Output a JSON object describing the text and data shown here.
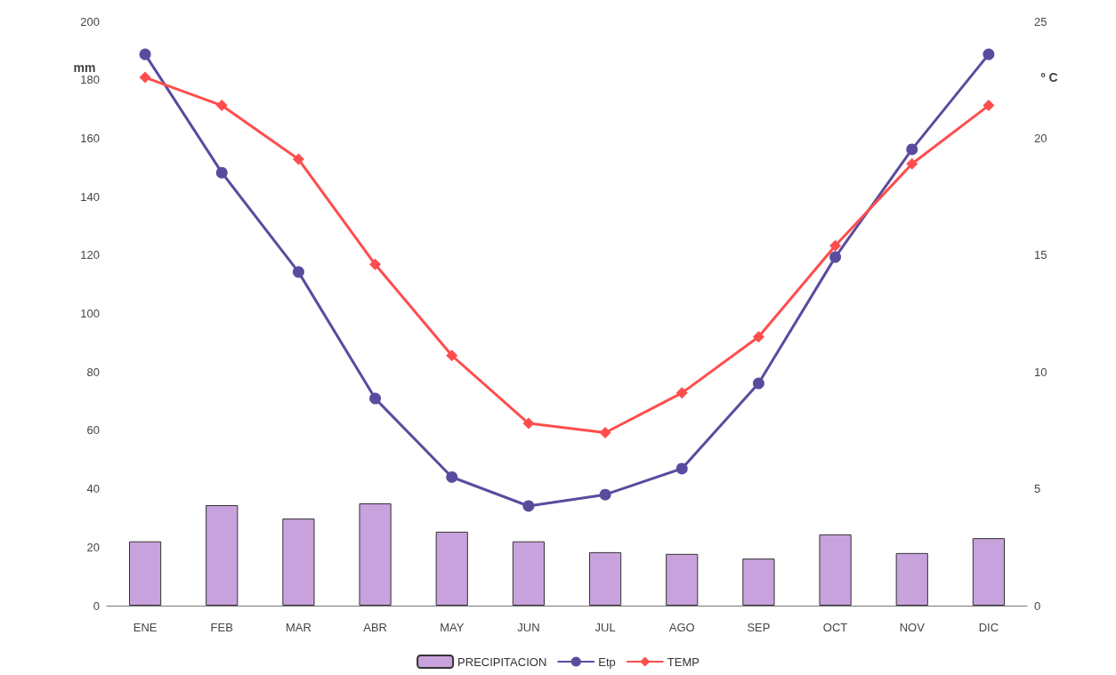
{
  "chart_data": {
    "type": "bar",
    "ylabel": "mm",
    "y2label": "º C",
    "categories": [
      "ENE",
      "FEB",
      "MAR",
      "ABR",
      "MAY",
      "JUN",
      "JUL",
      "AGO",
      "SEP",
      "OCT",
      "NOV",
      "DIC"
    ],
    "series": [
      {
        "name": "PRECIPITACION",
        "color": "#c8a2dc",
        "values": [
          22,
          34.4,
          29.8,
          35,
          25.3,
          22,
          18.3,
          17.7,
          16.1,
          24.4,
          18,
          23.1
        ]
      },
      {
        "name": "Etp",
        "type": "line",
        "marker": "circle",
        "color": "#5b4b9e",
        "values": [
          188.7,
          148.2,
          114.2,
          70.9,
          44,
          34.1,
          38,
          46.9,
          76.1,
          119.3,
          156.2,
          188.7
        ]
      },
      {
        "name": "TEMP",
        "type": "line",
        "marker": "diamond",
        "axis": "y2",
        "color": "#ff4d4d",
        "values": [
          22.6,
          21.4,
          19.1,
          14.6,
          10.7,
          7.8,
          7.4,
          9.1,
          11.5,
          15.4,
          18.9,
          21.4
        ]
      }
    ],
    "ylim": [
      0,
      200
    ],
    "yticks": [
      0,
      20,
      40,
      60,
      80,
      100,
      120,
      140,
      160,
      180,
      200
    ],
    "y2lim": [
      0,
      25
    ],
    "y2ticks": [
      0,
      5,
      10,
      15,
      20,
      25
    ],
    "grid": false,
    "legend": "bottom"
  }
}
